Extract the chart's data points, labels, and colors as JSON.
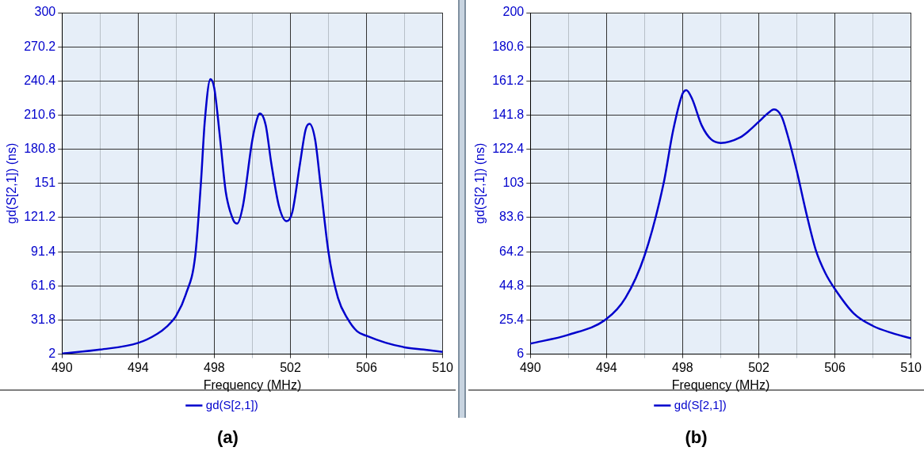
{
  "chart_data": [
    {
      "type": "line",
      "xlabel": "Frequency (MHz)",
      "ylabel": "gd(S[2,1]) (ns)",
      "grid": true,
      "legend": "bottom",
      "annotations": [
        "(a)"
      ],
      "xlim": [
        490,
        510
      ],
      "xticks": [
        490,
        {
          "value": 492,
          "label": null
        },
        494,
        {
          "value": 496,
          "label": null
        },
        498,
        {
          "value": 500,
          "label": null
        },
        502,
        {
          "value": 504,
          "label": null
        },
        506,
        {
          "value": 508,
          "label": null
        },
        510
      ],
      "ylim": [
        2,
        300
      ],
      "yticks": [
        2,
        31.8,
        61.6,
        91.4,
        121.2,
        151,
        180.8,
        210.6,
        240.4,
        270.2,
        300
      ],
      "series": [
        {
          "name": "gd(S[2,1])",
          "color": "#0000cc",
          "x": [
            490,
            492,
            494,
            495,
            495.5,
            496,
            496.5,
            497,
            497.3,
            497.5,
            497.8,
            498,
            498.3,
            498.6,
            499,
            499.2,
            499.5,
            500,
            500.3,
            500.4,
            500.7,
            501,
            501.4,
            501.8,
            502.1,
            502.5,
            502.8,
            503,
            503.3,
            503.6,
            504,
            504.5,
            505,
            505.5,
            506,
            507,
            508,
            509,
            510
          ],
          "values": [
            2.5,
            6,
            11.8,
            19.7,
            26,
            35.6,
            54,
            88,
            152,
            205,
            242,
            234,
            191,
            144,
            119,
            116,
            131,
            189,
            210,
            212,
            202,
            168,
            131,
            118,
            126,
            168,
            198,
            203,
            189,
            147,
            91,
            51,
            33,
            22,
            18,
            12,
            8,
            6,
            4
          ]
        }
      ]
    },
    {
      "type": "line",
      "xlabel": "Frequency (MHz)",
      "ylabel": "gd(S[2,1]) (ns)",
      "grid": true,
      "legend": "bottom",
      "annotations": [
        "(b)"
      ],
      "xlim": [
        490,
        510
      ],
      "xticks": [
        490,
        {
          "value": 492,
          "label": null
        },
        494,
        {
          "value": 496,
          "label": null
        },
        498,
        {
          "value": 500,
          "label": null
        },
        502,
        {
          "value": 504,
          "label": null
        },
        506,
        {
          "value": 508,
          "label": null
        },
        510
      ],
      "ylim": [
        6,
        200
      ],
      "yticks": [
        6,
        25.4,
        44.8,
        64.2,
        83.6,
        103,
        122.4,
        141.8,
        161.2,
        180.6,
        200
      ],
      "series": [
        {
          "name": "gd(S[2,1])",
          "color": "#0000cc",
          "x": [
            490,
            492,
            494,
            495,
            496,
            497,
            497.5,
            498,
            498.2,
            498.5,
            499,
            499.5,
            500,
            501,
            501.5,
            502,
            502.5,
            502.8,
            503.2,
            503.5,
            504,
            504.5,
            505,
            505.5,
            506,
            507,
            508,
            509,
            510
          ],
          "values": [
            12,
            17,
            26,
            38,
            62,
            103,
            133,
            154,
            156,
            151,
            136,
            128,
            126,
            129,
            133,
            138,
            143,
            145,
            141,
            131,
            110,
            86,
            65,
            52,
            43,
            29,
            22,
            18,
            15
          ]
        }
      ]
    }
  ]
}
